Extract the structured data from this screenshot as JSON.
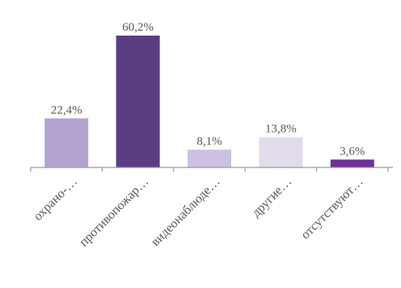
{
  "chart_data": {
    "type": "bar",
    "categories": [
      "охрано-…",
      "противопожар…",
      "видеонаблюде…",
      "другие…",
      "отсутствуют…"
    ],
    "values": [
      22.4,
      60.2,
      8.1,
      13.8,
      3.6
    ],
    "data_labels": [
      "22,4%",
      "60,2%",
      "8,1%",
      "13,8%",
      "3,6%"
    ],
    "colors": [
      "#b3a2cf",
      "#5b3d84",
      "#cdc1e2",
      "#e2dcec",
      "#6f30a0"
    ],
    "axis_color": "#9a9a9a",
    "ylim": [
      0,
      60.2
    ],
    "grid": false,
    "legend": "none"
  }
}
